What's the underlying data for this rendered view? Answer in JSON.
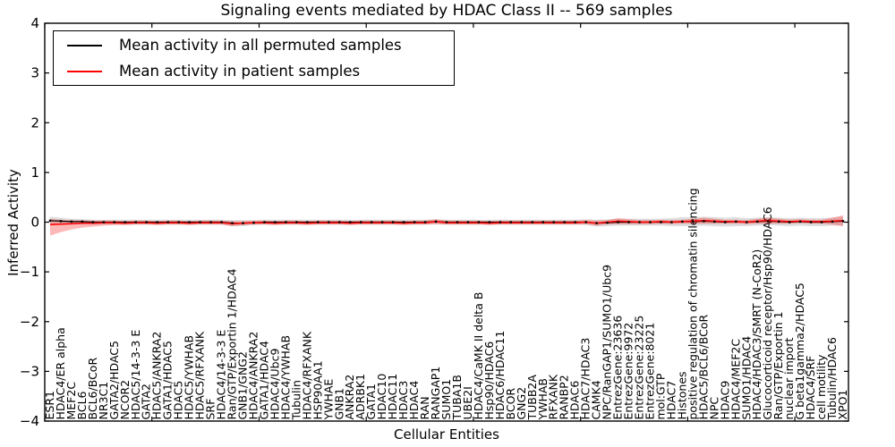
{
  "title": "Signaling events mediated by HDAC Class II -- 569 samples",
  "legend": {
    "entries": [
      {
        "label": "Mean activity in all permuted samples",
        "color": "#000000"
      },
      {
        "label": "Mean activity in patient samples",
        "color": "#ff0000"
      }
    ]
  },
  "chart_data": {
    "type": "line",
    "title": "Signaling events mediated by HDAC Class II -- 569 samples",
    "xlabel": "Cellular Entities",
    "ylabel": "Inferred Activity",
    "ylim": [
      -4,
      4
    ],
    "yticks": [
      4,
      3,
      2,
      1,
      0,
      -1,
      -2,
      -3,
      -4
    ],
    "x_major_tick_every": 10,
    "grid": false,
    "legend_position": "upper left",
    "x_tick_label_rotation": 90,
    "categories": [
      "ESR1",
      "HDAC4/ER alpha",
      "MEF2C",
      "BCL6",
      "BCL6/BCoR",
      "NR3C1",
      "GATA2/HDAC5",
      "NCOR2",
      "HDAC5/14-3-3 E",
      "GATA2",
      "HDAC5/ANKRA2",
      "GATA1/HDAC5",
      "HDAC5",
      "HDAC5/YWHAB",
      "HDAC5/RFXANK",
      "SRF",
      "HDAC4/14-3-3 E",
      "Ran/GTP/Exportin 1/HDAC4",
      "GNB1/GNG2",
      "HDAC4/ANKRA2",
      "GATA1/HDAC4",
      "HDAC4/Ubc9",
      "HDAC4/YWHAB",
      "Tubulin",
      "HDAC4/RFXANK",
      "HSP90AA1",
      "YWHAE",
      "GNB1",
      "ANKRA2",
      "ADRBK1",
      "GATA1",
      "HDAC10",
      "HDAC11",
      "HDAC3",
      "HDAC4",
      "RAN",
      "RANGAP1",
      "SUMO1",
      "TUBA1B",
      "UBE2I",
      "HDAC4/CaMK II delta B",
      "Hsp90/HDAC6",
      "HDAC6/HDAC11",
      "BCOR",
      "GNG2",
      "TUBB2A",
      "YWHAB",
      "RFXANK",
      "RANBP2",
      "HDAC6",
      "HDAC7/HDAC3",
      "CAMK4",
      "NPC/RanGAP1/SUMO1/Ubc9",
      "EntrezGene:23636",
      "EntrezGene:9972",
      "EntrezGene:23225",
      "EntrezGene:8021",
      "mol:GTP",
      "HDAC7",
      "Histones",
      "positive regulation of chromatin silencing",
      "HDAC5/BCL6/BCoR",
      "NPC",
      "HDAC9",
      "HDAC4/MEF2C",
      "SUMO1/HDAC4",
      "HDAC4/HDAC3/SMRT (N-CoR2)",
      "Glucocorticoid receptor/Hsp90/HDAC6",
      "Ran/GTP/Exportin 1",
      "nuclear import",
      "G beta1gamma2/HDAC5",
      "HDAC4/SRF",
      "cell motility",
      "Tubulin/HDAC6",
      "XPO1"
    ],
    "series": [
      {
        "name": "Mean activity in all permuted samples",
        "color": "#000000",
        "marker": "square",
        "band_color": "rgba(0,0,0,0.13)",
        "values": [
          0.03,
          0.02,
          0.01,
          0.01,
          0,
          0,
          0,
          0,
          0,
          0,
          0,
          0,
          0,
          0,
          0,
          0,
          0,
          -0.02,
          -0.02,
          -0.01,
          0,
          0,
          0,
          0,
          0,
          0,
          0,
          0,
          0,
          0,
          0,
          0,
          0,
          0,
          0,
          0,
          0.01,
          0,
          0,
          0,
          0,
          0,
          0,
          0,
          0,
          0,
          0,
          0,
          0,
          0,
          0,
          -0.02,
          -0.01,
          0,
          0,
          0,
          0,
          0,
          0,
          0.01,
          0.01,
          0.02,
          0.01,
          0,
          0.01,
          0,
          0.01,
          0.02,
          0.01,
          0,
          0.01,
          0,
          0,
          0.01,
          0.02
        ],
        "band_upper": [
          0.11,
          0.09,
          0.07,
          0.06,
          0.05,
          0.05,
          0.05,
          0.05,
          0.05,
          0.05,
          0.05,
          0.05,
          0.05,
          0.05,
          0.05,
          0.05,
          0.05,
          0.04,
          0.04,
          0.04,
          0.05,
          0.05,
          0.05,
          0.05,
          0.05,
          0.05,
          0.05,
          0.05,
          0.05,
          0.05,
          0.05,
          0.05,
          0.05,
          0.05,
          0.05,
          0.05,
          0.06,
          0.05,
          0.05,
          0.05,
          0.05,
          0.05,
          0.05,
          0.05,
          0.05,
          0.05,
          0.05,
          0.05,
          0.05,
          0.05,
          0.06,
          0.05,
          0.06,
          0.07,
          0.07,
          0.07,
          0.07,
          0.07,
          0.08,
          0.1,
          0.1,
          0.11,
          0.1,
          0.09,
          0.1,
          0.08,
          0.09,
          0.1,
          0.09,
          0.08,
          0.09,
          0.08,
          0.08,
          0.09,
          0.11
        ],
        "band_lower": [
          -0.05,
          -0.05,
          -0.05,
          -0.04,
          -0.05,
          -0.05,
          -0.05,
          -0.05,
          -0.05,
          -0.05,
          -0.05,
          -0.05,
          -0.05,
          -0.05,
          -0.05,
          -0.05,
          -0.05,
          -0.08,
          -0.08,
          -0.06,
          -0.05,
          -0.05,
          -0.05,
          -0.05,
          -0.05,
          -0.05,
          -0.05,
          -0.05,
          -0.05,
          -0.05,
          -0.05,
          -0.05,
          -0.05,
          -0.05,
          -0.05,
          -0.05,
          -0.04,
          -0.05,
          -0.05,
          -0.05,
          -0.05,
          -0.05,
          -0.05,
          -0.05,
          -0.05,
          -0.05,
          -0.05,
          -0.05,
          -0.05,
          -0.05,
          -0.06,
          -0.09,
          -0.08,
          -0.07,
          -0.07,
          -0.07,
          -0.07,
          -0.07,
          -0.08,
          -0.08,
          -0.08,
          -0.07,
          -0.08,
          -0.09,
          -0.08,
          -0.08,
          -0.07,
          -0.06,
          -0.07,
          -0.08,
          -0.07,
          -0.08,
          -0.08,
          -0.07,
          -0.07
        ]
      },
      {
        "name": "Mean activity in patient samples",
        "color": "#ff0000",
        "marker": "none",
        "band_color": "rgba(255,0,0,0.28)",
        "values": [
          -0.05,
          -0.04,
          -0.03,
          -0.02,
          -0.02,
          -0.01,
          -0.01,
          -0.02,
          -0.01,
          -0.01,
          -0.02,
          -0.01,
          -0.01,
          -0.02,
          -0.01,
          -0.01,
          -0.01,
          -0.03,
          -0.02,
          -0.01,
          -0.01,
          -0.02,
          -0.01,
          -0.01,
          -0.02,
          -0.01,
          -0.01,
          -0.01,
          -0.02,
          -0.01,
          -0.01,
          -0.01,
          -0.01,
          -0.02,
          -0.01,
          -0.01,
          0.01,
          -0.01,
          -0.01,
          -0.01,
          -0.01,
          -0.02,
          -0.01,
          -0.01,
          -0.01,
          -0.01,
          -0.01,
          -0.01,
          -0.01,
          -0.01,
          0,
          -0.02,
          0,
          0.02,
          0.01,
          0,
          0,
          0.01,
          0,
          0.01,
          0.02,
          0.03,
          0.02,
          0.01,
          0.01,
          0,
          0.02,
          0.03,
          0.02,
          0.01,
          0.02,
          0.01,
          0.01,
          0.02,
          0.03
        ],
        "band_upper": [
          0.07,
          0.05,
          0.04,
          0.04,
          0.03,
          0.03,
          0.03,
          0.02,
          0.03,
          0.03,
          0.02,
          0.03,
          0.03,
          0.02,
          0.03,
          0.03,
          0.03,
          0.02,
          0.02,
          0.03,
          0.03,
          0.02,
          0.03,
          0.03,
          0.02,
          0.03,
          0.03,
          0.03,
          0.02,
          0.03,
          0.03,
          0.03,
          0.03,
          0.02,
          0.03,
          0.03,
          0.06,
          0.03,
          0.03,
          0.03,
          0.03,
          0.02,
          0.03,
          0.03,
          0.03,
          0.03,
          0.03,
          0.03,
          0.03,
          0.03,
          0.04,
          0.03,
          0.04,
          0.08,
          0.06,
          0.04,
          0.04,
          0.05,
          0.04,
          0.05,
          0.07,
          0.09,
          0.07,
          0.05,
          0.05,
          0.04,
          0.07,
          0.09,
          0.07,
          0.05,
          0.06,
          0.05,
          0.05,
          0.09,
          0.14
        ],
        "band_lower": [
          -0.27,
          -0.2,
          -0.15,
          -0.11,
          -0.09,
          -0.07,
          -0.06,
          -0.06,
          -0.05,
          -0.05,
          -0.06,
          -0.05,
          -0.05,
          -0.06,
          -0.05,
          -0.05,
          -0.05,
          -0.08,
          -0.06,
          -0.05,
          -0.05,
          -0.06,
          -0.05,
          -0.05,
          -0.06,
          -0.05,
          -0.05,
          -0.05,
          -0.06,
          -0.05,
          -0.05,
          -0.05,
          -0.05,
          -0.06,
          -0.05,
          -0.05,
          -0.04,
          -0.05,
          -0.05,
          -0.05,
          -0.05,
          -0.06,
          -0.05,
          -0.05,
          -0.05,
          -0.05,
          -0.05,
          -0.05,
          -0.05,
          -0.05,
          -0.04,
          -0.07,
          -0.04,
          -0.04,
          -0.04,
          -0.04,
          -0.04,
          -0.03,
          -0.04,
          -0.03,
          -0.03,
          -0.03,
          -0.03,
          -0.03,
          -0.03,
          -0.04,
          -0.03,
          -0.03,
          -0.03,
          -0.03,
          -0.02,
          -0.03,
          -0.03,
          -0.05,
          -0.08
        ]
      }
    ]
  }
}
